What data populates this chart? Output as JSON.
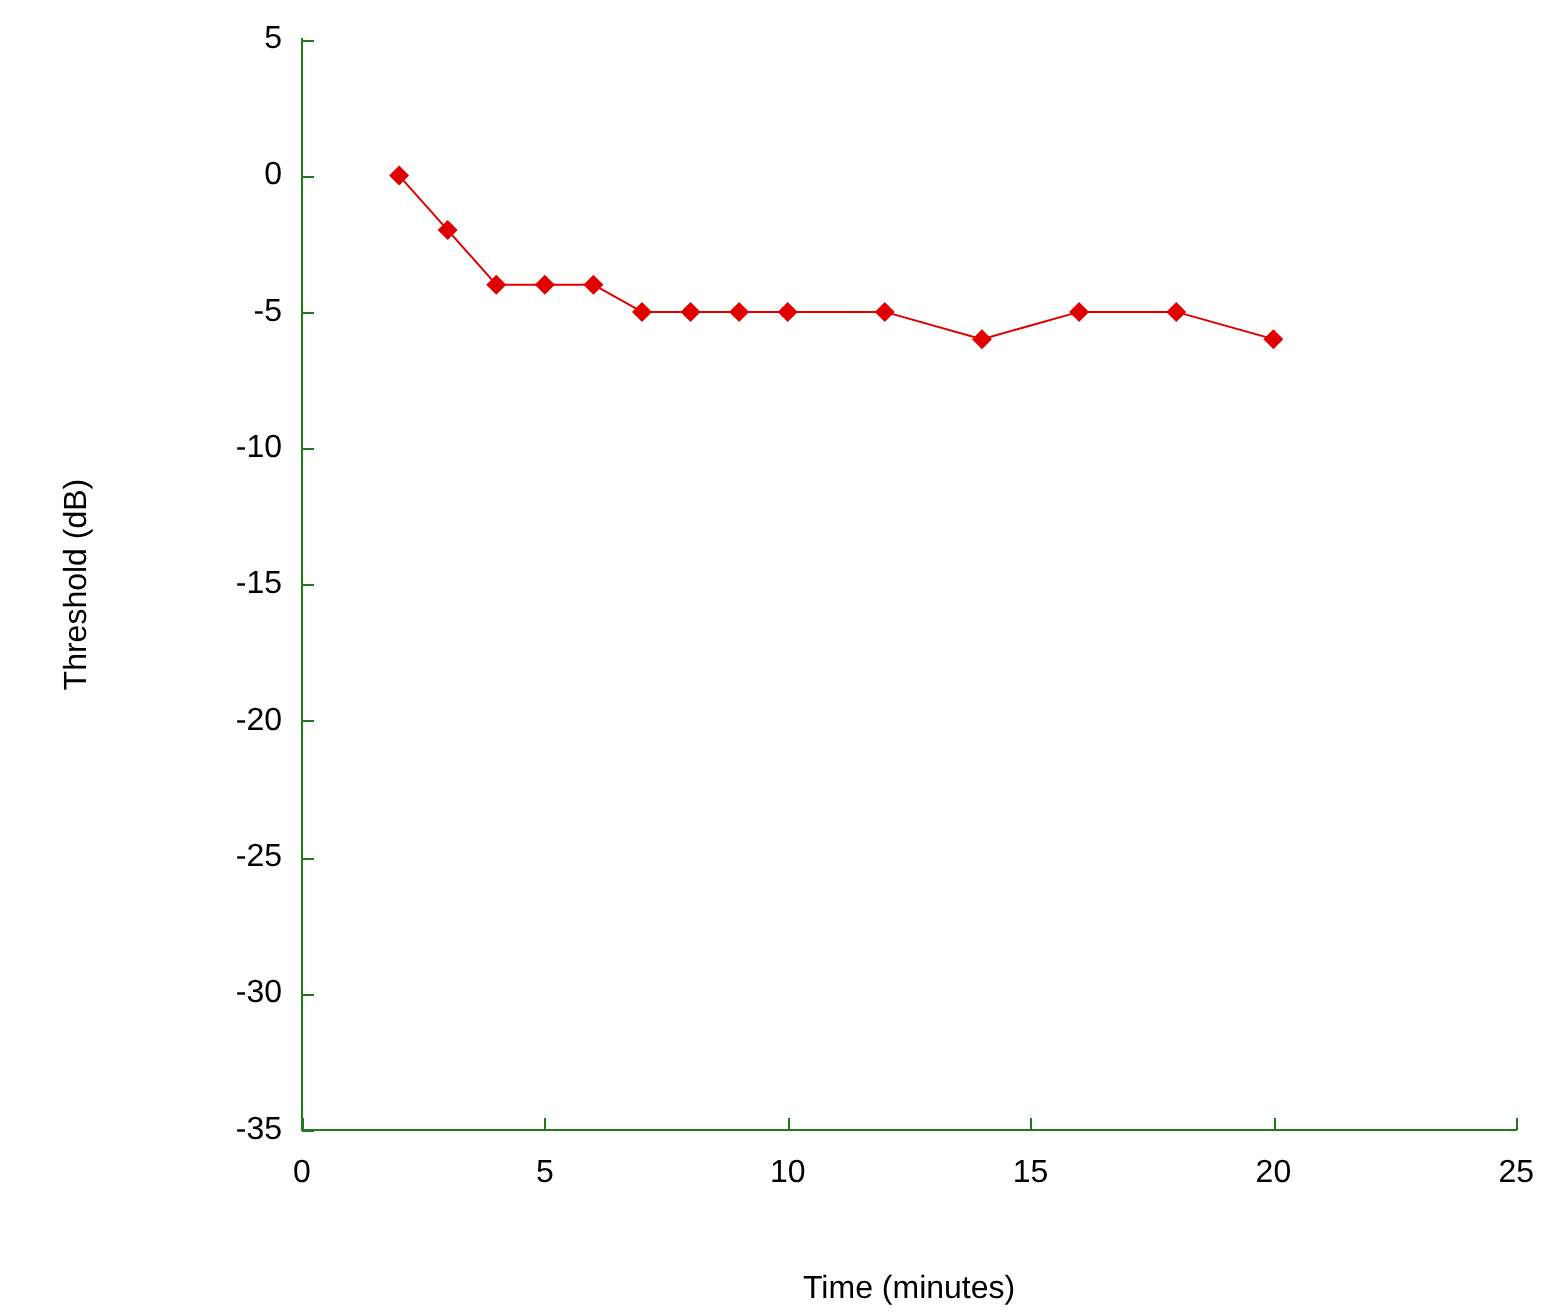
{
  "chart_data": {
    "type": "line",
    "xlabel": "Time (minutes)",
    "ylabel": "Threshold (dB)",
    "x": [
      2,
      3,
      4,
      5,
      6,
      7,
      8,
      9,
      10,
      12,
      14,
      16,
      18,
      20
    ],
    "series": [
      {
        "color": "#e00000",
        "values": [
          0,
          -2,
          -4,
          -4,
          -4,
          -5,
          -5,
          -5,
          -5,
          -5,
          -6,
          -5,
          -5,
          -6
        ]
      }
    ],
    "xlim": [
      0,
      25
    ],
    "xticks": [
      0,
      5,
      10,
      15,
      20,
      25
    ],
    "ylim": [
      -35,
      5
    ],
    "yticks": [
      5,
      0,
      -5,
      -10,
      -15,
      -20,
      -25,
      -30,
      -35
    ],
    "marker": "diamond",
    "line_style": "solid"
  }
}
